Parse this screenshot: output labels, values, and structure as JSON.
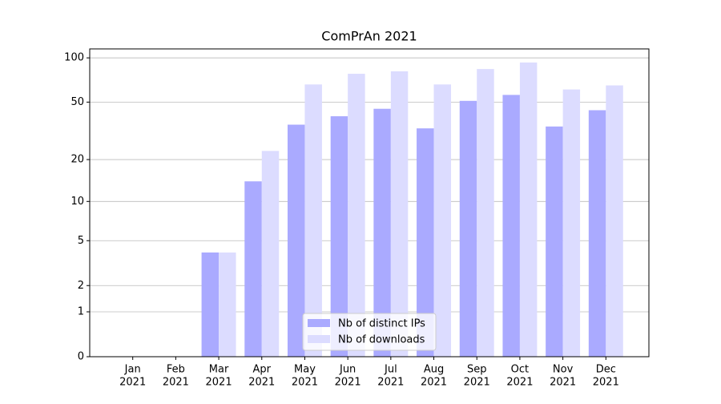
{
  "chart_data": {
    "type": "bar",
    "title": "ComPrAn 2021",
    "categories": [
      [
        "Jan",
        "2021"
      ],
      [
        "Feb",
        "2021"
      ],
      [
        "Mar",
        "2021"
      ],
      [
        "Apr",
        "2021"
      ],
      [
        "May",
        "2021"
      ],
      [
        "Jun",
        "2021"
      ],
      [
        "Jul",
        "2021"
      ],
      [
        "Aug",
        "2021"
      ],
      [
        "Sep",
        "2021"
      ],
      [
        "Oct",
        "2021"
      ],
      [
        "Nov",
        "2021"
      ],
      [
        "Dec",
        "2021"
      ]
    ],
    "series": [
      {
        "name": "Nb of distinct IPs",
        "color": "#aaaaff",
        "values": [
          0,
          0,
          4,
          14,
          35,
          40,
          45,
          33,
          51,
          56,
          34,
          44
        ]
      },
      {
        "name": "Nb of downloads",
        "color": "#dcdcff",
        "values": [
          0,
          0,
          4,
          23,
          66,
          78,
          81,
          66,
          84,
          93,
          61,
          65
        ]
      }
    ],
    "yscale": "log1p",
    "ylim": [
      0,
      115
    ],
    "yticks": [
      0,
      1,
      2,
      5,
      10,
      20,
      50,
      100
    ],
    "grid": true,
    "legend": "lower center"
  }
}
